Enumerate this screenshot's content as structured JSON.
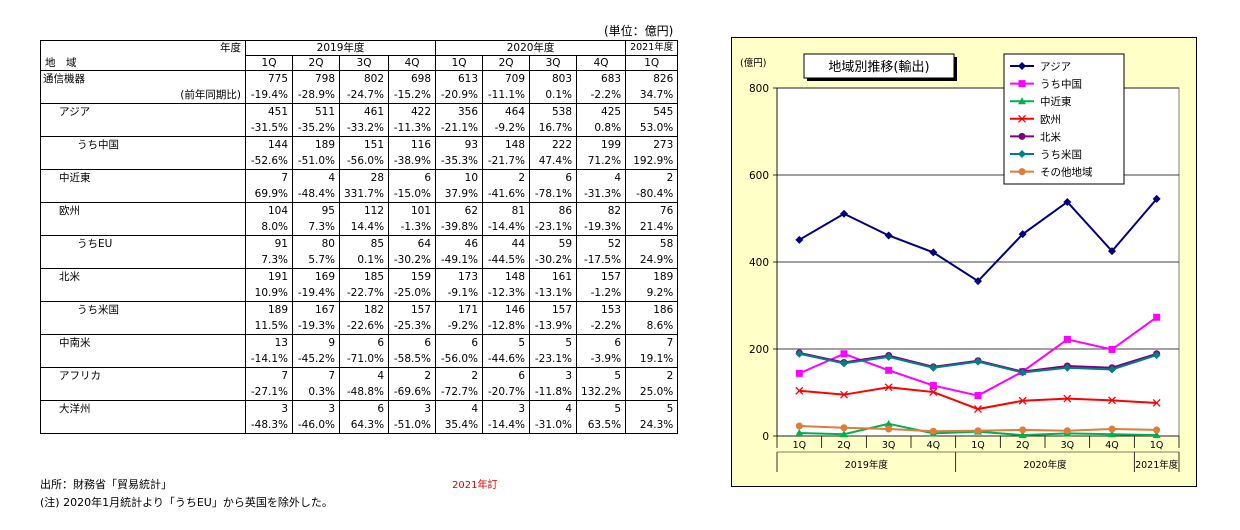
{
  "table": {
    "unit": "(単位：億円)",
    "header_year_label": "年度",
    "header_region_label": "地　域",
    "year_groups": [
      "2019年度",
      "2020年度",
      "2021年度"
    ],
    "quarters": [
      "1Q",
      "2Q",
      "3Q",
      "4Q",
      "1Q",
      "2Q",
      "3Q",
      "4Q",
      "1Q"
    ],
    "rows": [
      {
        "label": "通信機器",
        "indent": 0,
        "values": [
          "775",
          "798",
          "802",
          "698",
          "613",
          "709",
          "803",
          "683",
          "826"
        ],
        "yoy_label": "(前年同期比)",
        "yoy": [
          "-19.4%",
          "-28.9%",
          "-24.7%",
          "-15.2%",
          "-20.9%",
          "-11.1%",
          "0.1%",
          "-2.2%",
          "34.7%"
        ]
      },
      {
        "label": "アジア",
        "indent": 1,
        "values": [
          "451",
          "511",
          "461",
          "422",
          "356",
          "464",
          "538",
          "425",
          "545"
        ],
        "yoy": [
          "-31.5%",
          "-35.2%",
          "-33.2%",
          "-11.3%",
          "-21.1%",
          "-9.2%",
          "16.7%",
          "0.8%",
          "53.0%"
        ]
      },
      {
        "label": "うち中国",
        "indent": 2,
        "values": [
          "144",
          "189",
          "151",
          "116",
          "93",
          "148",
          "222",
          "199",
          "273"
        ],
        "yoy": [
          "-52.6%",
          "-51.0%",
          "-56.0%",
          "-38.9%",
          "-35.3%",
          "-21.7%",
          "47.4%",
          "71.2%",
          "192.9%"
        ]
      },
      {
        "label": "中近東",
        "indent": 1,
        "values": [
          "7",
          "4",
          "28",
          "6",
          "10",
          "2",
          "6",
          "4",
          "2"
        ],
        "yoy": [
          "69.9%",
          "-48.4%",
          "331.7%",
          "-15.0%",
          "37.9%",
          "-41.6%",
          "-78.1%",
          "-31.3%",
          "-80.4%"
        ]
      },
      {
        "label": "欧州",
        "indent": 1,
        "values": [
          "104",
          "95",
          "112",
          "101",
          "62",
          "81",
          "86",
          "82",
          "76"
        ],
        "yoy": [
          "8.0%",
          "7.3%",
          "14.4%",
          "-1.3%",
          "-39.8%",
          "-14.4%",
          "-23.1%",
          "-19.3%",
          "21.4%"
        ]
      },
      {
        "label": "うちEU",
        "indent": 2,
        "values": [
          "91",
          "80",
          "85",
          "64",
          "46",
          "44",
          "59",
          "52",
          "58"
        ],
        "yoy": [
          "7.3%",
          "5.7%",
          "0.1%",
          "-30.2%",
          "-49.1%",
          "-44.5%",
          "-30.2%",
          "-17.5%",
          "24.9%"
        ]
      },
      {
        "label": "北米",
        "indent": 1,
        "values": [
          "191",
          "169",
          "185",
          "159",
          "173",
          "148",
          "161",
          "157",
          "189"
        ],
        "yoy": [
          "10.9%",
          "-19.4%",
          "-22.7%",
          "-25.0%",
          "-9.1%",
          "-12.3%",
          "-13.1%",
          "-1.2%",
          "9.2%"
        ]
      },
      {
        "label": "うち米国",
        "indent": 2,
        "values": [
          "189",
          "167",
          "182",
          "157",
          "171",
          "146",
          "157",
          "153",
          "186"
        ],
        "yoy": [
          "11.5%",
          "-19.3%",
          "-22.6%",
          "-25.3%",
          "-9.2%",
          "-12.8%",
          "-13.9%",
          "-2.2%",
          "8.6%"
        ]
      },
      {
        "label": "中南米",
        "indent": 1,
        "values": [
          "13",
          "9",
          "6",
          "6",
          "6",
          "5",
          "5",
          "6",
          "7"
        ],
        "yoy": [
          "-14.1%",
          "-45.2%",
          "-71.0%",
          "-58.5%",
          "-56.0%",
          "-44.6%",
          "-23.1%",
          "-3.9%",
          "19.1%"
        ]
      },
      {
        "label": "アフリカ",
        "indent": 1,
        "values": [
          "7",
          "7",
          "4",
          "2",
          "2",
          "6",
          "3",
          "5",
          "2"
        ],
        "yoy": [
          "-27.1%",
          "0.3%",
          "-48.8%",
          "-69.6%",
          "-72.7%",
          "-20.7%",
          "-11.8%",
          "132.2%",
          "25.0%"
        ]
      },
      {
        "label": "大洋州",
        "indent": 1,
        "values": [
          "3",
          "3",
          "6",
          "3",
          "4",
          "3",
          "4",
          "5",
          "5"
        ],
        "yoy": [
          "-48.3%",
          "-46.0%",
          "64.3%",
          "-51.0%",
          "35.4%",
          "-14.4%",
          "-31.0%",
          "63.5%",
          "24.3%"
        ]
      }
    ]
  },
  "notes": {
    "source": "出所：財務省「貿易統計」",
    "note": "(注) 2020年1月統計より「うちEU」から英国を除外した。",
    "red_note": "2021年訂"
  },
  "chart_data": {
    "type": "line",
    "title": "地域別推移(輸出)",
    "ylabel": "(億円)",
    "ylim": [
      0,
      800
    ],
    "yticks": [
      0,
      200,
      400,
      600,
      800
    ],
    "categories": [
      "1Q",
      "2Q",
      "3Q",
      "4Q",
      "1Q",
      "2Q",
      "3Q",
      "4Q",
      "1Q"
    ],
    "year_groups": [
      {
        "label": "2019年度",
        "span": 4
      },
      {
        "label": "2020年度",
        "span": 4
      },
      {
        "label": "2021年度",
        "span": 1
      }
    ],
    "grid": true,
    "legend_position": "top-right",
    "series": [
      {
        "name": "アジア",
        "color": "#000080",
        "marker": "diamond",
        "values": [
          451,
          511,
          461,
          422,
          356,
          464,
          538,
          425,
          545
        ]
      },
      {
        "name": "うち中国",
        "color": "#ff00ff",
        "marker": "square",
        "values": [
          144,
          189,
          151,
          116,
          93,
          148,
          222,
          199,
          273
        ]
      },
      {
        "name": "中近東",
        "color": "#00b050",
        "marker": "triangle",
        "values": [
          7,
          4,
          28,
          6,
          10,
          2,
          6,
          4,
          2
        ]
      },
      {
        "name": "欧州",
        "color": "#ff0000",
        "marker": "x",
        "values": [
          104,
          95,
          112,
          101,
          62,
          81,
          86,
          82,
          76
        ]
      },
      {
        "name": "北米",
        "color": "#7f007f",
        "marker": "circle",
        "values": [
          191,
          169,
          185,
          159,
          173,
          148,
          161,
          157,
          189
        ]
      },
      {
        "name": "うち米国",
        "color": "#008080",
        "marker": "diamond",
        "values": [
          189,
          167,
          182,
          157,
          171,
          146,
          157,
          153,
          186
        ]
      },
      {
        "name": "その他地域",
        "color": "#e07b39",
        "marker": "circle",
        "values": [
          23,
          19,
          16,
          11,
          12,
          14,
          12,
          16,
          14
        ]
      }
    ]
  }
}
